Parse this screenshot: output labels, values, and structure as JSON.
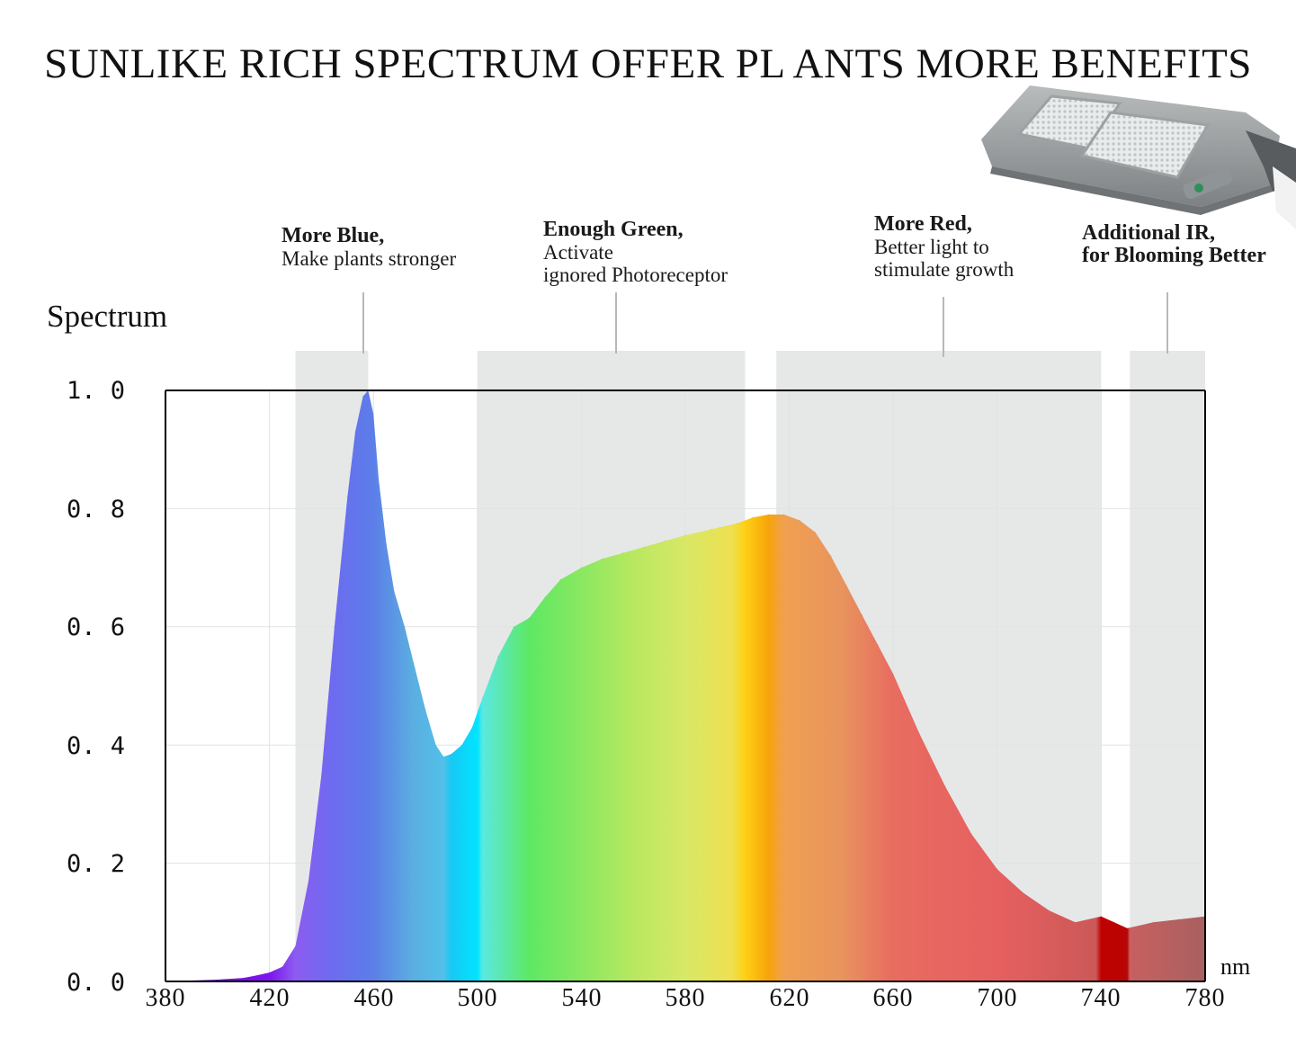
{
  "title": "SUNLIKE RICH SPECTRUM OFFER PL ANTS MORE BENEFITS",
  "annotations": [
    {
      "heading": "More Blue,",
      "text": [
        "Make plants stronger"
      ],
      "band": [
        430,
        458
      ]
    },
    {
      "heading": "Enough Green,",
      "text": [
        "Activate",
        "ignored Photoreceptor"
      ],
      "band": [
        500,
        603
      ]
    },
    {
      "heading": "More Red,",
      "text": [
        "Better light to",
        "stimulate growth"
      ],
      "band": [
        615,
        740
      ]
    },
    {
      "heading": "Additional IR,",
      "text": [
        "for Blooming Better"
      ],
      "band": [
        751,
        780
      ]
    }
  ],
  "icons": {
    "lamp": "solar-street-light-icon"
  },
  "colors": {
    "band_fill": "#e6e8e8",
    "axis": "#000000",
    "grid": "#e2e2e2"
  },
  "chart_data": {
    "type": "area",
    "title": "SUNLIKE RICH SPECTRUM OFFER PL ANTS MORE BENEFITS",
    "ylabel": "Spectrum",
    "xlabel": "nm",
    "xlim": [
      380,
      780
    ],
    "ylim": [
      0,
      1.0
    ],
    "x_ticks": [
      380,
      420,
      460,
      500,
      540,
      580,
      620,
      660,
      700,
      740,
      780
    ],
    "y_ticks": [
      "0. 0",
      "0. 2",
      "0. 4",
      "0. 6",
      "0. 8",
      "1. 0"
    ],
    "y_tick_values": [
      0,
      0.2,
      0.4,
      0.6,
      0.8,
      1.0
    ],
    "grid": true,
    "x": [
      380,
      400,
      410,
      415,
      420,
      425,
      430,
      435,
      440,
      445,
      450,
      453,
      456,
      458,
      460,
      462,
      465,
      468,
      472,
      476,
      480,
      484,
      487,
      490,
      494,
      498,
      502,
      508,
      514,
      520,
      526,
      532,
      540,
      548,
      556,
      564,
      572,
      580,
      590,
      600,
      606,
      612,
      618,
      624,
      630,
      636,
      642,
      648,
      654,
      660,
      670,
      680,
      690,
      700,
      710,
      720,
      730,
      740,
      745,
      750,
      760,
      770,
      780
    ],
    "y": [
      0.0,
      0.003,
      0.006,
      0.01,
      0.015,
      0.025,
      0.06,
      0.17,
      0.35,
      0.6,
      0.82,
      0.93,
      0.99,
      1.0,
      0.96,
      0.85,
      0.74,
      0.66,
      0.6,
      0.53,
      0.46,
      0.4,
      0.38,
      0.385,
      0.4,
      0.43,
      0.48,
      0.55,
      0.6,
      0.615,
      0.65,
      0.68,
      0.7,
      0.715,
      0.725,
      0.735,
      0.745,
      0.755,
      0.765,
      0.775,
      0.785,
      0.79,
      0.79,
      0.78,
      0.76,
      0.72,
      0.67,
      0.62,
      0.57,
      0.52,
      0.42,
      0.33,
      0.25,
      0.19,
      0.15,
      0.12,
      0.1,
      0.11,
      0.1,
      0.09,
      0.1,
      0.105,
      0.11
    ],
    "color_stops": [
      [
        380,
        "#6a00c8"
      ],
      [
        420,
        "#7d16ee"
      ],
      [
        430,
        "#8c5cf0"
      ],
      [
        445,
        "#6b6cf0"
      ],
      [
        460,
        "#5c7ee8"
      ],
      [
        475,
        "#5aaee0"
      ],
      [
        487,
        "#52c0e8"
      ],
      [
        490,
        "#18c8f4"
      ],
      [
        500,
        "#00e4ff"
      ],
      [
        502,
        "#5ae8e2"
      ],
      [
        520,
        "#5ee864"
      ],
      [
        540,
        "#8ae860"
      ],
      [
        560,
        "#b8e860"
      ],
      [
        580,
        "#d8e866"
      ],
      [
        598,
        "#eee050"
      ],
      [
        603,
        "#fdd015"
      ],
      [
        612,
        "#f7a40a"
      ],
      [
        618,
        "#f0a050"
      ],
      [
        640,
        "#e8945e"
      ],
      [
        660,
        "#e86c60"
      ],
      [
        700,
        "#e66060"
      ],
      [
        738,
        "#cc5858"
      ],
      [
        740,
        "#c00000"
      ],
      [
        750,
        "#b80606"
      ],
      [
        751,
        "#c86060"
      ],
      [
        780,
        "#a86060"
      ]
    ]
  }
}
